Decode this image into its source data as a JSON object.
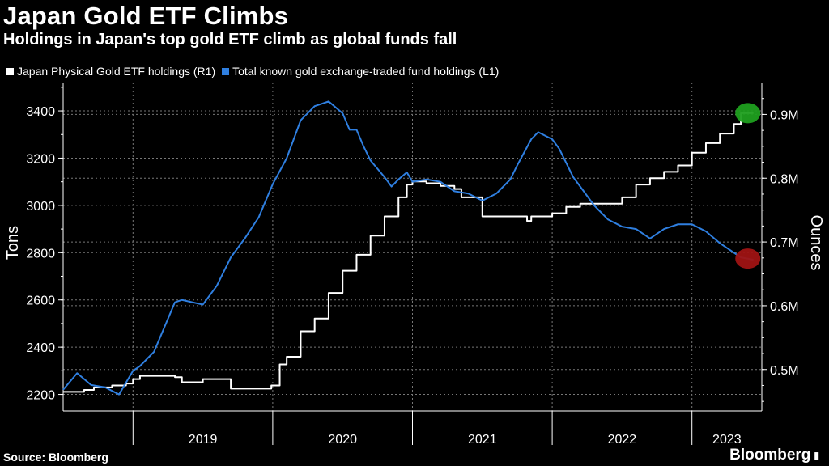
{
  "header": {
    "title": "Japan Gold ETF Climbs",
    "subtitle": "Holdings in Japan's top gold ETF climb as global funds fall"
  },
  "footer": {
    "source": "Source: Bloomberg",
    "brand": "Bloomberg"
  },
  "colors": {
    "background": "#000000",
    "japan_series": "#ffffff",
    "total_series": "#2f7fe0",
    "grid": "#777777",
    "highlight_green": "#1fa01f",
    "highlight_red": "#a01414"
  },
  "chart_data": {
    "type": "line",
    "x_start": 2018.5,
    "x_end": 2023.5,
    "x_tick_labels": [
      "2019",
      "2020",
      "2021",
      "2022",
      "2023"
    ],
    "left_axis": {
      "label": "Tons",
      "ylim": [
        2130,
        3520
      ],
      "ticks": [
        2200,
        2400,
        2600,
        2800,
        3000,
        3200,
        3400
      ]
    },
    "right_axis": {
      "label": "Ounces",
      "ylim": [
        0.435,
        0.95
      ],
      "ticks": [
        0.5,
        0.6,
        0.7,
        0.8,
        0.9
      ],
      "tick_labels": [
        "0.5M",
        "0.6M",
        "0.7M",
        "0.8M",
        "0.9M"
      ]
    },
    "series": [
      {
        "name": "Japan Physical Gold ETF holdings (R1)",
        "axis": "right",
        "color": "#ffffff",
        "x": [
          2018.5,
          2018.65,
          2018.72,
          2018.85,
          2018.95,
          2019.0,
          2019.05,
          2019.15,
          2019.3,
          2019.35,
          2019.5,
          2019.7,
          2019.95,
          2019.99,
          2020.05,
          2020.1,
          2020.2,
          2020.3,
          2020.4,
          2020.5,
          2020.6,
          2020.7,
          2020.8,
          2020.9,
          2020.96,
          2021.0,
          2021.1,
          2021.2,
          2021.3,
          2021.35,
          2021.5,
          2021.8,
          2021.82,
          2021.85,
          2022.0,
          2022.1,
          2022.2,
          2022.35,
          2022.5,
          2022.6,
          2022.7,
          2022.8,
          2022.9,
          2023.0,
          2023.1,
          2023.2,
          2023.3,
          2023.35,
          2023.44
        ],
        "values": [
          0.465,
          0.468,
          0.472,
          0.475,
          0.478,
          0.485,
          0.49,
          0.49,
          0.488,
          0.48,
          0.485,
          0.47,
          0.47,
          0.475,
          0.508,
          0.52,
          0.56,
          0.58,
          0.62,
          0.655,
          0.68,
          0.71,
          0.74,
          0.77,
          0.79,
          0.795,
          0.792,
          0.788,
          0.783,
          0.77,
          0.74,
          0.74,
          0.733,
          0.74,
          0.745,
          0.755,
          0.76,
          0.76,
          0.77,
          0.79,
          0.8,
          0.81,
          0.82,
          0.84,
          0.855,
          0.87,
          0.885,
          0.902,
          0.902
        ]
      },
      {
        "name": "Total known gold exchange-traded fund holdings (L1)",
        "axis": "left",
        "color": "#2f7fe0",
        "x": [
          2018.5,
          2018.6,
          2018.7,
          2018.8,
          2018.9,
          2019.0,
          2019.05,
          2019.15,
          2019.25,
          2019.3,
          2019.35,
          2019.5,
          2019.6,
          2019.7,
          2019.8,
          2019.9,
          2020.0,
          2020.1,
          2020.2,
          2020.3,
          2020.35,
          2020.4,
          2020.5,
          2020.55,
          2020.6,
          2020.65,
          2020.7,
          2020.8,
          2020.85,
          2020.9,
          2020.96,
          2021.0,
          2021.1,
          2021.2,
          2021.3,
          2021.4,
          2021.5,
          2021.6,
          2021.7,
          2021.75,
          2021.85,
          2021.9,
          2022.0,
          2022.05,
          2022.1,
          2022.15,
          2022.2,
          2022.3,
          2022.4,
          2022.5,
          2022.6,
          2022.7,
          2022.8,
          2022.9,
          2023.0,
          2023.1,
          2023.2,
          2023.3,
          2023.35,
          2023.44
        ],
        "values": [
          2220,
          2290,
          2240,
          2230,
          2200,
          2300,
          2320,
          2380,
          2520,
          2590,
          2600,
          2580,
          2660,
          2780,
          2860,
          2950,
          3090,
          3200,
          3360,
          3420,
          3430,
          3440,
          3390,
          3320,
          3320,
          3250,
          3190,
          3120,
          3080,
          3110,
          3140,
          3100,
          3110,
          3100,
          3060,
          3050,
          3020,
          3050,
          3110,
          3170,
          3280,
          3310,
          3280,
          3240,
          3180,
          3120,
          3080,
          3000,
          2940,
          2910,
          2900,
          2860,
          2900,
          2920,
          2920,
          2890,
          2840,
          2800,
          2780,
          2770
        ]
      }
    ],
    "highlights": [
      {
        "series": "Japan Physical Gold ETF holdings (R1)",
        "x": 2023.4,
        "value": 0.902,
        "color": "#1fa01f"
      },
      {
        "series": "Total known gold exchange-traded fund holdings (L1)",
        "x": 2023.4,
        "value": 2775,
        "color": "#a01414"
      }
    ]
  }
}
